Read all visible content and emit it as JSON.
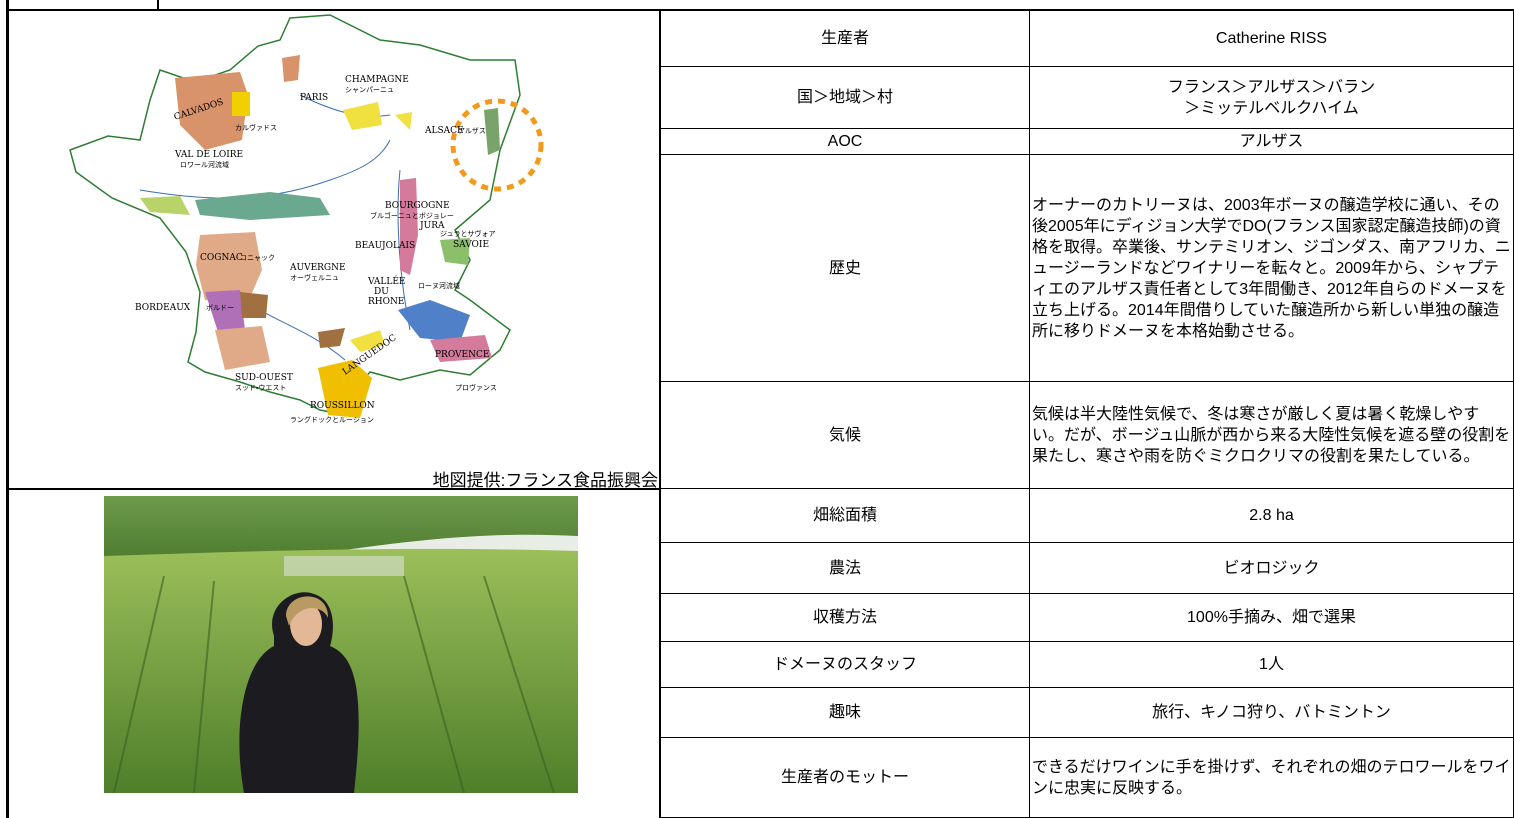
{
  "map": {
    "caption": "地図提供:フランス食品振興会",
    "labels": [
      "CHAMPAGNE",
      "シャンパーニュ",
      "CALVADOS",
      "カルヴァドス",
      "PARIS",
      "ALSACE",
      "アルザス",
      "VAL DE LOIRE",
      "ロワール河流域",
      "BOURGOGNE",
      "ブルゴーニュとボジョレー",
      "JURA",
      "ジュラとサヴォア",
      "SAVOIE",
      "BEAUJOLAIS",
      "COGNAC",
      "コニャック",
      "AUVERGNE",
      "オーヴェルニュ",
      "VALLÉE",
      "DU",
      "RHONE",
      "ローヌ河流域",
      "BORDEAUX",
      "ボルドー",
      "LANGUEDOC",
      "PROVENCE",
      "SUD-OUEST",
      "スッド・ウエスト",
      "ROUSSILLON",
      "ラングドックとルーション",
      "プロヴァンス"
    ]
  },
  "table": {
    "rows": [
      {
        "label": "生産者",
        "value": [
          "Catherine RISS"
        ]
      },
      {
        "label": "国＞地域＞村",
        "value": [
          "フランス＞アルザス＞バラン",
          "＞ミッテルベルクハイム"
        ]
      },
      {
        "label": "AOC",
        "value": [
          "アルザス"
        ]
      },
      {
        "label": "歴史",
        "value": [
          "オーナーのカトリーヌは、2003年ボーヌの醸造学校に通い、その後2005年にディジョン大学でDO(フランス国家認定醸造技師)の資格を取得。卒業後、サンテミリオン、ジゴンダス、南アフリカ、ニュージーランドなどワイナリーを転々と。2009年から、シャプティエのアルザス責任者として3年間働き、2012年自らのドメーヌを立ち上げる。2014年間借りしていた醸造所から新しい単独の醸造所に移りドメーヌを本格始動させる。"
        ]
      },
      {
        "label": "気候",
        "value": [
          "気候は半大陸性気候で、冬は寒さが厳しく夏は暑く乾燥しやすい。だが、ボージュ山脈が西から来る大陸性気候を遮る壁の役割を果たし、寒さや雨を防ぐミクロクリマの役割を果たしている。"
        ]
      },
      {
        "label": "畑総面積",
        "value": [
          "2.8 ha"
        ]
      },
      {
        "label": "農法",
        "value": [
          "ビオロジック"
        ]
      },
      {
        "label": "収穫方法",
        "value": [
          "100%手摘み、畑で選果"
        ]
      },
      {
        "label": "ドメーヌのスタッフ",
        "value": [
          "1人"
        ]
      },
      {
        "label": "趣味",
        "value": [
          "旅行、キノコ狩り、バトミントン"
        ]
      },
      {
        "label": "生産者のモットー",
        "value": [
          "できるだけワインに手を掛けず、それぞれの畑のテロワールをワインに忠実に反映する。"
        ]
      }
    ]
  }
}
